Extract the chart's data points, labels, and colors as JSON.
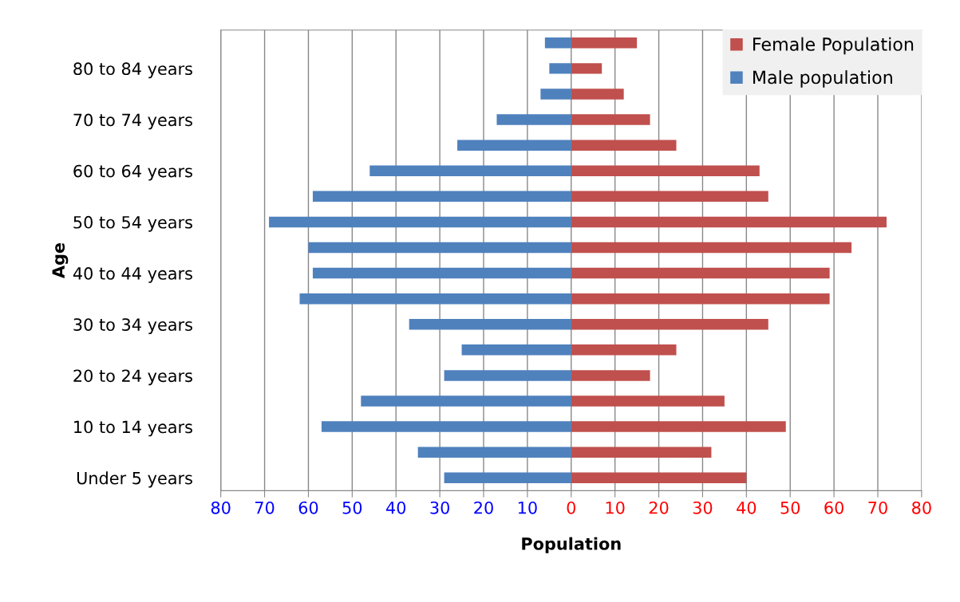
{
  "chart_data": {
    "type": "bar",
    "orientation": "horizontal",
    "xlabel": "Population",
    "ylabel": "Age",
    "categories": [
      null,
      "80 to 84 years",
      null,
      "70 to 74 years",
      null,
      "60 to 64 years",
      null,
      "50 to 54 years",
      null,
      "40 to 44 years",
      null,
      "30 to 34 years",
      null,
      "20 to 24 years",
      null,
      "10 to 14 years",
      null,
      "Under 5 years"
    ],
    "series": [
      {
        "name": "Female Population",
        "color": "#c0504d",
        "values": [
          15,
          7,
          12,
          18,
          24,
          43,
          45,
          72,
          64,
          59,
          59,
          45,
          24,
          18,
          35,
          49,
          32,
          40
        ]
      },
      {
        "name": "Male population",
        "color": "#4f81bd",
        "values": [
          -6,
          -5,
          -7,
          -17,
          -26,
          -46,
          -59,
          -69,
          -60,
          -59,
          -62,
          -37,
          -25,
          -29,
          -48,
          -57,
          -35,
          -29
        ]
      }
    ],
    "xlim": [
      -80,
      80
    ],
    "xticks": [
      {
        "value": -80,
        "label": "80"
      },
      {
        "value": -70,
        "label": "70"
      },
      {
        "value": -60,
        "label": "60"
      },
      {
        "value": -50,
        "label": "50"
      },
      {
        "value": -40,
        "label": "40"
      },
      {
        "value": -30,
        "label": "30"
      },
      {
        "value": -20,
        "label": "20"
      },
      {
        "value": -10,
        "label": "10"
      },
      0,
      10,
      20,
      30,
      40,
      50,
      60,
      70,
      80
    ],
    "stacked": true,
    "grid": "x",
    "legend": "top right"
  }
}
